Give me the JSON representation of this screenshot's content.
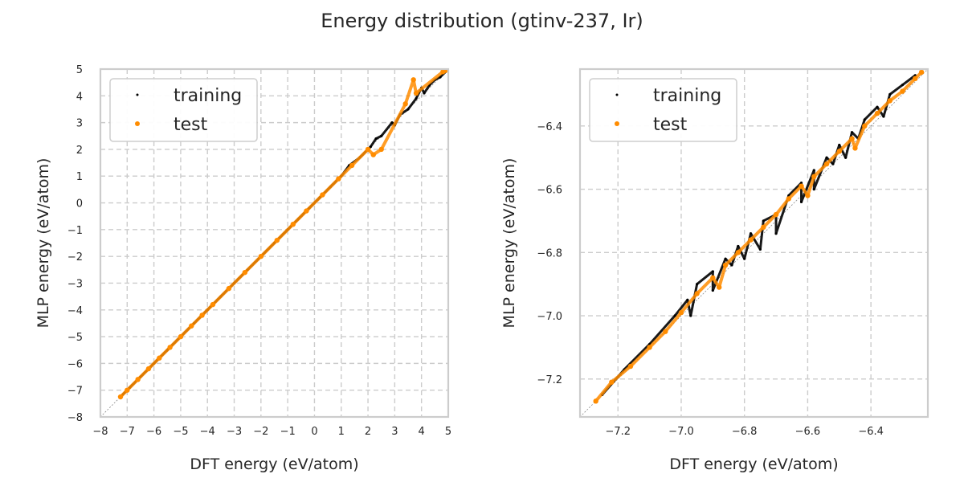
{
  "figure": {
    "title": "Energy distribution (gtinv-237, Ir)"
  },
  "colors": {
    "training": "#000000",
    "test": "#ff8c00",
    "grid": "#cccccc",
    "frame": "#cccccc",
    "diagonal": "#888888"
  },
  "chart_data": [
    {
      "type": "scatter",
      "xlabel": "DFT energy (eV/atom)",
      "ylabel": "MLP energy (eV/atom)",
      "xlim": [
        -8,
        5
      ],
      "ylim": [
        -8,
        5
      ],
      "xticks": [
        "−8",
        "−7",
        "−6",
        "−5",
        "−4",
        "−3",
        "−2",
        "−1",
        "0",
        "1",
        "2",
        "3",
        "4",
        "5"
      ],
      "yticks": [
        "−8",
        "−7",
        "−6",
        "−5",
        "−4",
        "−3",
        "−2",
        "−1",
        "0",
        "1",
        "2",
        "3",
        "4",
        "5"
      ],
      "xtick_values": [
        -8,
        -7,
        -6,
        -5,
        -4,
        -3,
        -2,
        -1,
        0,
        1,
        2,
        3,
        4,
        5
      ],
      "ytick_values": [
        -8,
        -7,
        -6,
        -5,
        -4,
        -3,
        -2,
        -1,
        0,
        1,
        2,
        3,
        4,
        5
      ],
      "grid": true,
      "diagonal_reference": true,
      "legend_position": "top-left",
      "series": [
        {
          "name": "training",
          "points": [
            [
              -7.25,
              -7.25
            ],
            [
              -6.9,
              -6.9
            ],
            [
              -6.5,
              -6.5
            ],
            [
              -6.0,
              -6.0
            ],
            [
              -5.5,
              -5.5
            ],
            [
              -5.0,
              -5.0
            ],
            [
              -4.5,
              -4.5
            ],
            [
              -4.0,
              -4.0
            ],
            [
              -3.5,
              -3.5
            ],
            [
              -3.0,
              -3.0
            ],
            [
              -2.5,
              -2.5
            ],
            [
              -2.0,
              -2.0
            ],
            [
              -1.5,
              -1.5
            ],
            [
              -1.0,
              -1.0
            ],
            [
              -0.6,
              -0.6
            ],
            [
              -0.2,
              -0.2
            ],
            [
              0.2,
              0.2
            ],
            [
              0.6,
              0.6
            ],
            [
              1.0,
              1.0
            ],
            [
              1.3,
              1.4
            ],
            [
              1.7,
              1.7
            ],
            [
              2.1,
              2.1
            ],
            [
              2.5,
              2.5
            ],
            [
              2.9,
              3.0
            ],
            [
              3.2,
              3.3
            ],
            [
              3.5,
              3.5
            ],
            [
              3.8,
              3.9
            ],
            [
              4.1,
              4.1
            ],
            [
              4.3,
              4.4
            ],
            [
              4.5,
              4.6
            ],
            [
              4.7,
              4.7
            ],
            [
              4.9,
              4.9
            ],
            [
              3.0,
              2.9
            ],
            [
              4.0,
              4.3
            ],
            [
              2.3,
              2.4
            ]
          ]
        },
        {
          "name": "test",
          "points": [
            [
              -7.25,
              -7.25
            ],
            [
              -7.0,
              -7.0
            ],
            [
              -6.6,
              -6.6
            ],
            [
              -6.2,
              -6.2
            ],
            [
              -5.8,
              -5.8
            ],
            [
              -5.4,
              -5.4
            ],
            [
              -5.0,
              -5.0
            ],
            [
              -4.6,
              -4.6
            ],
            [
              -4.2,
              -4.2
            ],
            [
              -3.8,
              -3.8
            ],
            [
              -3.2,
              -3.2
            ],
            [
              -2.6,
              -2.6
            ],
            [
              -2.0,
              -2.0
            ],
            [
              -1.4,
              -1.4
            ],
            [
              -0.8,
              -0.8
            ],
            [
              -0.3,
              -0.3
            ],
            [
              0.3,
              0.3
            ],
            [
              0.9,
              0.9
            ],
            [
              1.4,
              1.4
            ],
            [
              2.0,
              2.0
            ],
            [
              2.2,
              1.8
            ],
            [
              2.5,
              2.0
            ],
            [
              3.4,
              3.7
            ],
            [
              3.7,
              4.6
            ],
            [
              3.8,
              4.1
            ],
            [
              4.8,
              4.9
            ],
            [
              4.9,
              4.95
            ]
          ]
        }
      ]
    },
    {
      "type": "scatter",
      "xlabel": "DFT energy (eV/atom)",
      "ylabel": "MLP energy (eV/atom)",
      "xlim": [
        -7.32,
        -6.22
      ],
      "ylim": [
        -7.32,
        -6.22
      ],
      "xticks": [
        "−7.2",
        "−7.0",
        "−6.8",
        "−6.6",
        "−6.4"
      ],
      "yticks": [
        "−7.2",
        "−7.0",
        "−6.8",
        "−6.6",
        "−6.4"
      ],
      "xtick_values": [
        -7.2,
        -7.0,
        -6.8,
        -6.6,
        -6.4
      ],
      "ytick_values": [
        -7.2,
        -7.0,
        -6.8,
        -6.6,
        -6.4
      ],
      "grid": true,
      "diagonal_reference": true,
      "legend_position": "top-left",
      "series": [
        {
          "name": "training",
          "points": [
            [
              -7.25,
              -7.25
            ],
            [
              -7.18,
              -7.17
            ],
            [
              -7.1,
              -7.09
            ],
            [
              -7.02,
              -7.0
            ],
            [
              -6.98,
              -6.95
            ],
            [
              -6.95,
              -6.9
            ],
            [
              -6.9,
              -6.86
            ],
            [
              -6.86,
              -6.82
            ],
            [
              -6.82,
              -6.78
            ],
            [
              -6.78,
              -6.74
            ],
            [
              -6.74,
              -6.7
            ],
            [
              -6.7,
              -6.68
            ],
            [
              -6.66,
              -6.62
            ],
            [
              -6.62,
              -6.58
            ],
            [
              -6.58,
              -6.54
            ],
            [
              -6.54,
              -6.5
            ],
            [
              -6.5,
              -6.46
            ],
            [
              -6.46,
              -6.42
            ],
            [
              -6.42,
              -6.38
            ],
            [
              -6.38,
              -6.34
            ],
            [
              -6.34,
              -6.3
            ],
            [
              -6.3,
              -6.27
            ],
            [
              -6.26,
              -6.24
            ],
            [
              -6.8,
              -6.82
            ],
            [
              -6.75,
              -6.79
            ],
            [
              -6.7,
              -6.74
            ],
            [
              -6.62,
              -6.64
            ],
            [
              -6.52,
              -6.52
            ],
            [
              -6.44,
              -6.44
            ],
            [
              -6.9,
              -6.92
            ],
            [
              -6.97,
              -7.0
            ],
            [
              -6.84,
              -6.84
            ],
            [
              -6.58,
              -6.6
            ],
            [
              -6.48,
              -6.5
            ],
            [
              -6.36,
              -6.37
            ]
          ]
        },
        {
          "name": "test",
          "points": [
            [
              -7.27,
              -7.27
            ],
            [
              -7.22,
              -7.21
            ],
            [
              -7.16,
              -7.16
            ],
            [
              -7.1,
              -7.1
            ],
            [
              -7.05,
              -7.05
            ],
            [
              -7.0,
              -6.99
            ],
            [
              -6.95,
              -6.93
            ],
            [
              -6.9,
              -6.88
            ],
            [
              -6.86,
              -6.84
            ],
            [
              -6.82,
              -6.8
            ],
            [
              -6.78,
              -6.76
            ],
            [
              -6.74,
              -6.72
            ],
            [
              -6.7,
              -6.68
            ],
            [
              -6.66,
              -6.63
            ],
            [
              -6.62,
              -6.59
            ],
            [
              -6.58,
              -6.56
            ],
            [
              -6.54,
              -6.52
            ],
            [
              -6.5,
              -6.48
            ],
            [
              -6.46,
              -6.44
            ],
            [
              -6.42,
              -6.4
            ],
            [
              -6.38,
              -6.36
            ],
            [
              -6.34,
              -6.32
            ],
            [
              -6.3,
              -6.29
            ],
            [
              -6.26,
              -6.25
            ],
            [
              -6.24,
              -6.23
            ],
            [
              -6.88,
              -6.91
            ],
            [
              -6.6,
              -6.62
            ],
            [
              -6.45,
              -6.47
            ]
          ]
        }
      ]
    }
  ]
}
